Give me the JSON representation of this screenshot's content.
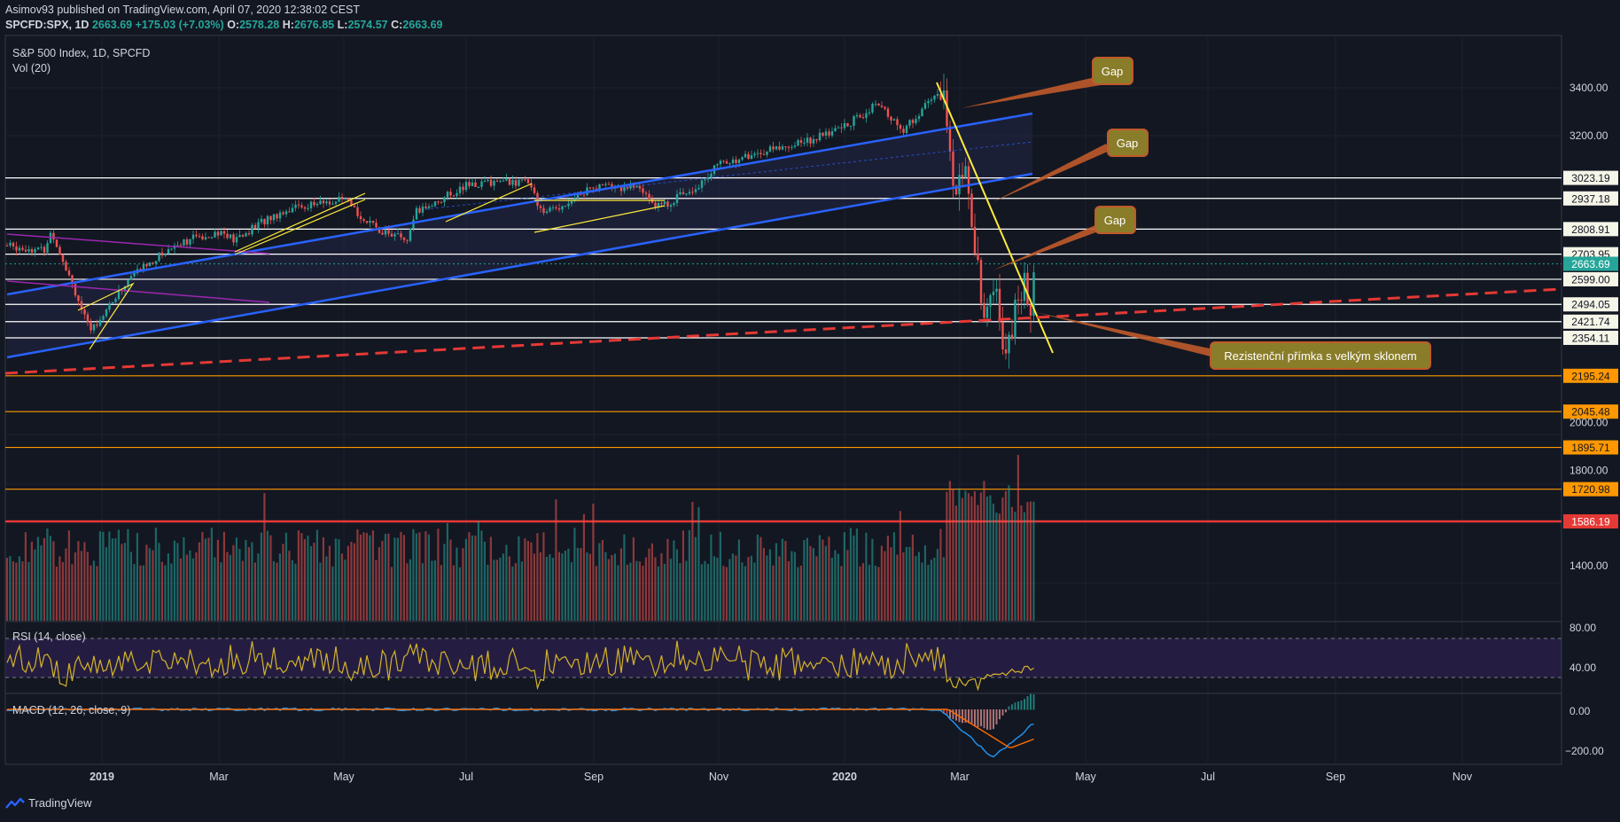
{
  "header": {
    "line1": "Asimov93 published on TradingView.com, April 07, 2020 12:38:02 CEST",
    "symbol": "SPCFD:SPX, 1D",
    "last": "2663.69",
    "change": "+175.03 (+7.03%)",
    "o_label": "O:",
    "o": "2578.28",
    "h_label": "H:",
    "h": "2676.85",
    "l_label": "L:",
    "l": "2574.57",
    "c_label": "C:",
    "c": "2663.69"
  },
  "legend": {
    "title": "S&P 500 Index, 1D, SPCFD",
    "volume": "Vol (20)",
    "rsi": "RSI (14, close)",
    "macd": "MACD (12, 26, close, 9)"
  },
  "price_axis": {
    "ticks": [
      "3400.00",
      "3200.00",
      "2000.00",
      "1800.00",
      "1400.00"
    ],
    "tick_values": [
      3400,
      3200,
      2000,
      1800,
      1400
    ]
  },
  "levels": [
    {
      "label": "3023.19",
      "color": "#ffffff",
      "value": 3023.19
    },
    {
      "label": "2937.18",
      "color": "#ffffff",
      "value": 2937.18
    },
    {
      "label": "2808.91",
      "color": "#ffffff",
      "value": 2808.91
    },
    {
      "label": "2703.95",
      "color": "#ffffff",
      "value": 2703.95
    },
    {
      "label": "2663.69",
      "color": "#26a69a",
      "value": 2663.69
    },
    {
      "label": "2599.00",
      "color": "#ffffff",
      "value": 2599.0
    },
    {
      "label": "2494.05",
      "color": "#ffffff",
      "value": 2494.05
    },
    {
      "label": "2421.74",
      "color": "#ffffff",
      "value": 2421.74
    },
    {
      "label": "2354.11",
      "color": "#ffffff",
      "value": 2354.11
    },
    {
      "label": "2195.24",
      "color": "#ff9800",
      "value": 2195.24
    },
    {
      "label": "2045.48",
      "color": "#ff9800",
      "value": 2045.48
    },
    {
      "label": "1895.71",
      "color": "#ff9800",
      "value": 1895.71
    },
    {
      "label": "1720.98",
      "color": "#ff9800",
      "value": 1720.98
    },
    {
      "label": "1586.19",
      "color": "#e53935",
      "value": 1586.19
    }
  ],
  "rsi_axis": {
    "ticks": [
      "80.00",
      "40.00"
    ]
  },
  "macd_axis": {
    "ticks": [
      "0.00",
      "−200.00"
    ]
  },
  "time_axis": {
    "labels": [
      "2019",
      "Mar",
      "May",
      "Jul",
      "Sep",
      "Nov",
      "2020",
      "Mar",
      "May",
      "Jul",
      "Sep",
      "Nov"
    ],
    "bold": [
      true,
      false,
      false,
      false,
      false,
      false,
      true,
      false,
      false,
      false,
      false,
      false
    ]
  },
  "annotations": {
    "gap1": "Gap",
    "gap2": "Gap",
    "gap3": "Gap",
    "resistance": "Rezistenční přímka s velkým sklonem"
  },
  "brand": "TradingView",
  "colors": {
    "bg": "#131722",
    "up": "#26a69a",
    "down": "#ef5350",
    "callout": "#8a7d2a"
  }
}
